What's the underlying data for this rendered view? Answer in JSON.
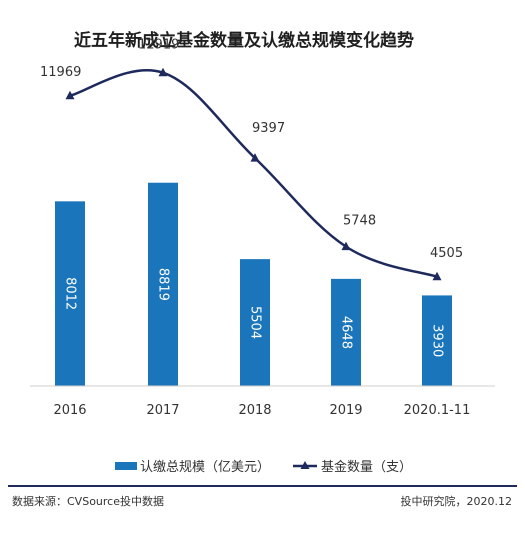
{
  "chart_data": {
    "type": "bar",
    "title": "近五年新成立基金数量及认缴总规模变化趋势",
    "categories": [
      "2016",
      "2017",
      "2018",
      "2019",
      "2020.1-11"
    ],
    "series": [
      {
        "name": "认缴总规模（亿美元）",
        "type": "bar",
        "values": [
          8012,
          8819,
          5504,
          4648,
          3930
        ],
        "color": "#1b75bb"
      },
      {
        "name": "基金数量（支）",
        "type": "line",
        "values": [
          11969,
          12919,
          9397,
          5748,
          4505
        ],
        "color": "#1f2a5c"
      }
    ],
    "bar_ylim": [
      0,
      11000
    ],
    "line_ylim": [
      0,
      14000
    ],
    "grid": false,
    "legend_position": "bottom"
  },
  "footer": {
    "source": "数据来源：CVSource投中数据",
    "credit": "投中研究院，2020.12"
  }
}
